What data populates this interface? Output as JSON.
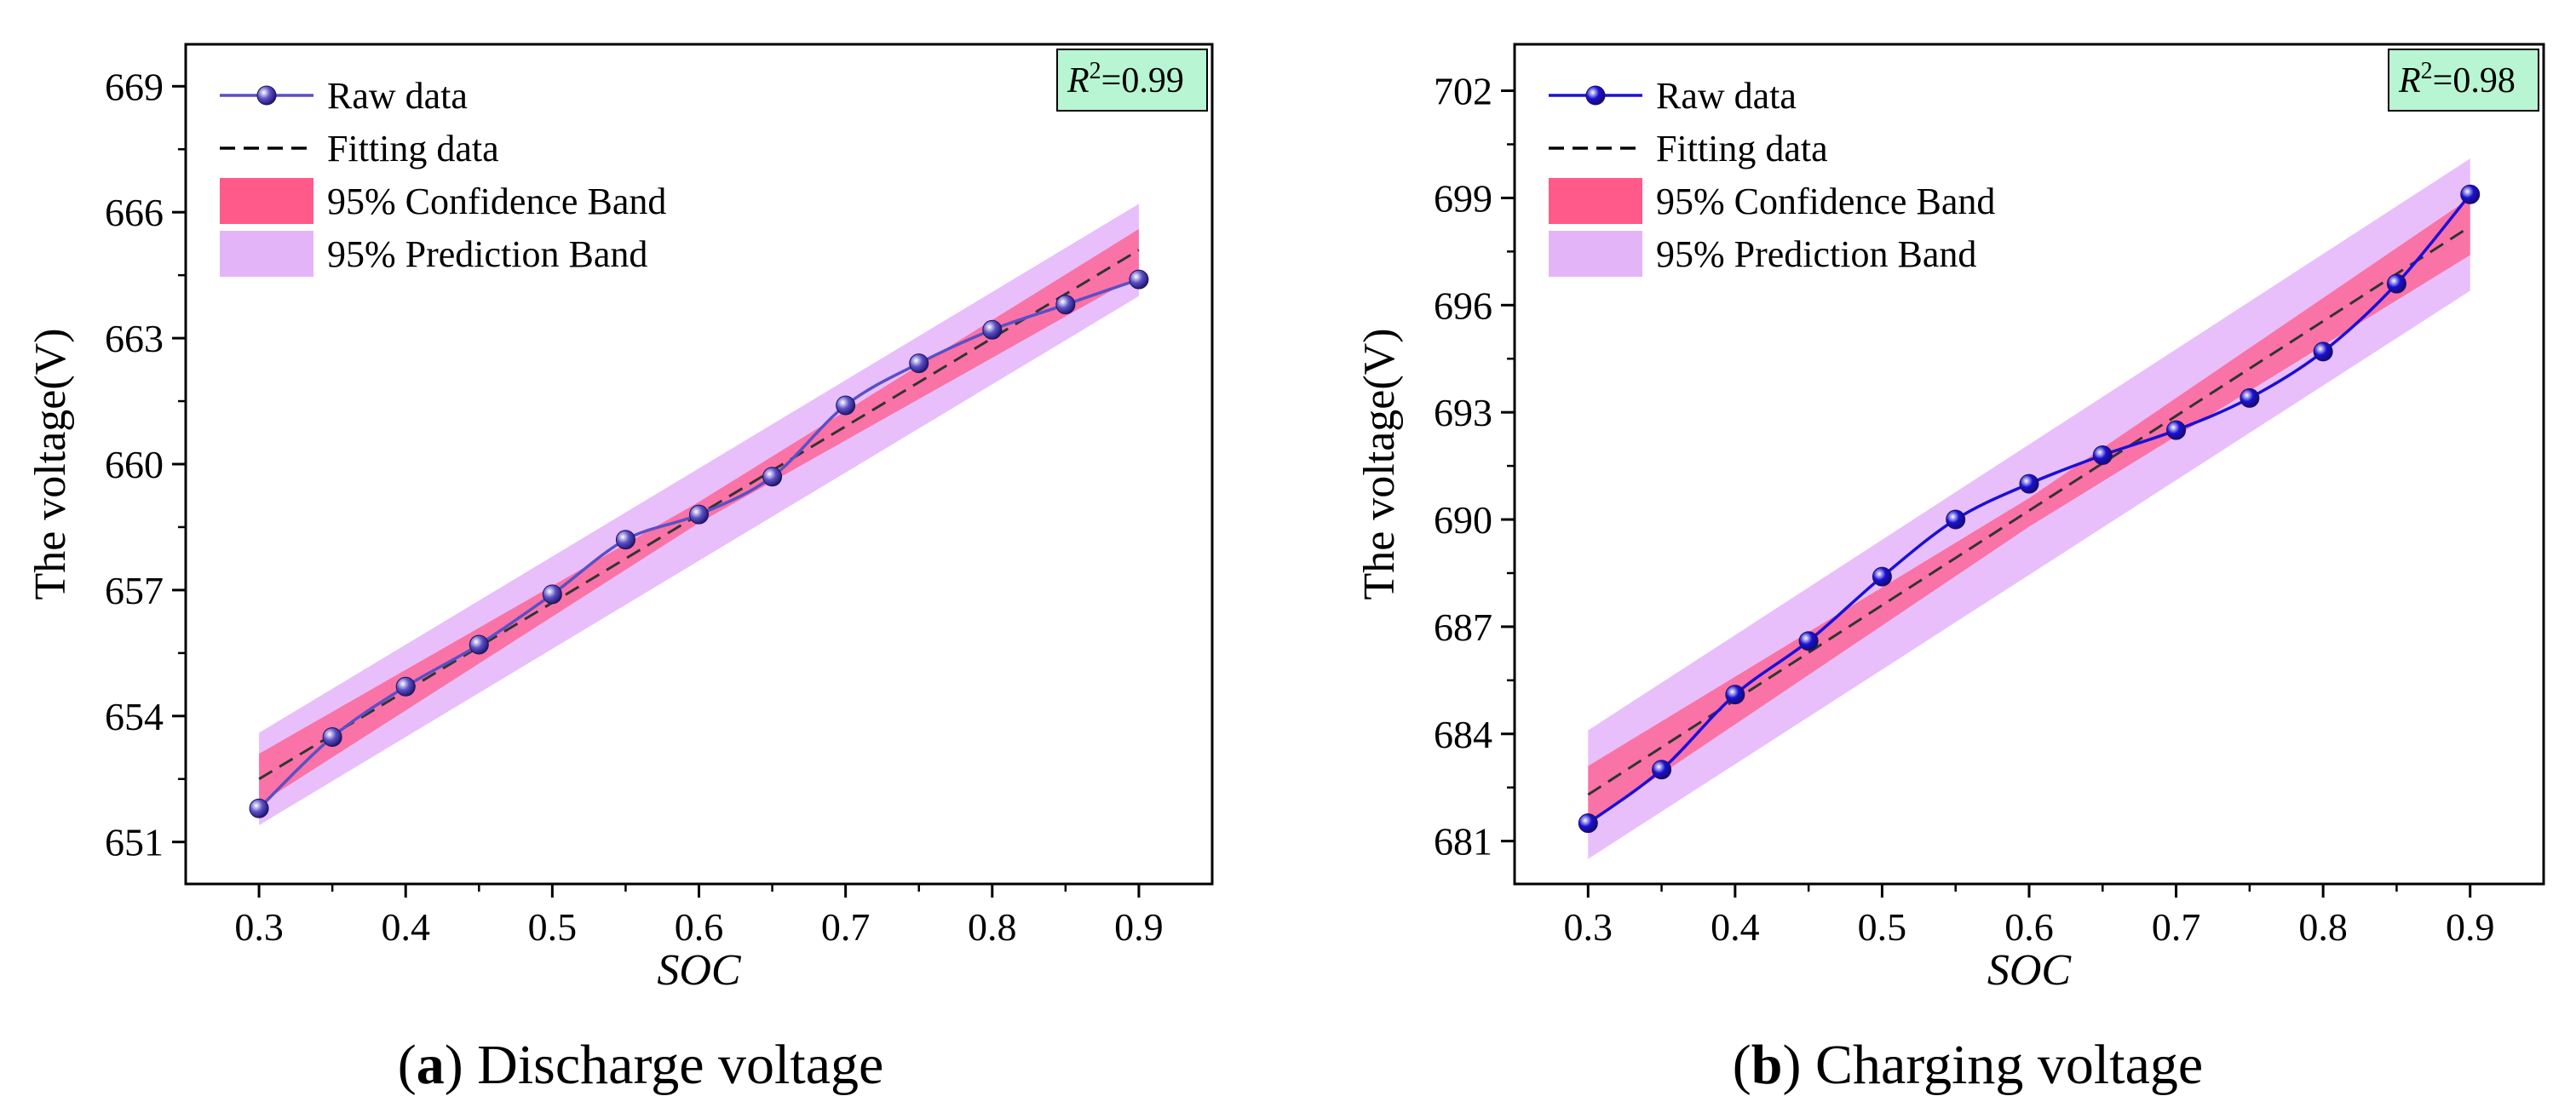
{
  "chart_data": [
    {
      "type": "line",
      "caption": {
        "label": "a",
        "text": "Discharge voltage"
      },
      "xlabel": "SOC",
      "ylabel": "The voltage(V)",
      "xlim": [
        0.25,
        0.95
      ],
      "ylim": [
        650,
        670
      ],
      "x_ticks": [
        "0.3",
        "0.4",
        "0.5",
        "0.6",
        "0.7",
        "0.8",
        "0.9"
      ],
      "y_ticks": [
        "651",
        "654",
        "657",
        "660",
        "663",
        "666",
        "669"
      ],
      "r2": {
        "symbol": "R",
        "sup": "2",
        "value": "=0.99"
      },
      "legend": [
        {
          "key": "raw",
          "label": "Raw data"
        },
        {
          "key": "fit",
          "label": "Fitting data"
        },
        {
          "key": "conf",
          "label": "95% Confidence Band"
        },
        {
          "key": "pred",
          "label": "95% Prediction Band"
        }
      ],
      "colors": {
        "raw": "#5b4fc6",
        "fit": "#333333",
        "conf": "#ff5a8a",
        "pred": "#e4b4f9",
        "r2_box": "#b8f5d2"
      },
      "raw_data": {
        "x": [
          0.3,
          0.35,
          0.4,
          0.45,
          0.5,
          0.55,
          0.6,
          0.65,
          0.7,
          0.75,
          0.8,
          0.85,
          0.9
        ],
        "y": [
          651.8,
          653.5,
          654.7,
          655.7,
          656.9,
          658.2,
          658.8,
          659.7,
          661.4,
          662.4,
          663.2,
          663.8,
          664.4
        ]
      },
      "fit": {
        "x": [
          0.3,
          0.9
        ],
        "y": [
          652.5,
          665.1
        ]
      },
      "confidence_band": {
        "x": [
          0.3,
          0.6,
          0.9
        ],
        "lower": [
          651.9,
          658.6,
          664.5
        ],
        "upper": [
          653.1,
          659.1,
          665.6
        ]
      },
      "prediction_band": {
        "x": [
          0.3,
          0.9
        ],
        "lower": [
          651.4,
          664.0
        ],
        "upper": [
          653.6,
          666.2
        ]
      }
    },
    {
      "type": "line",
      "caption": {
        "label": "b",
        "text": "Charging voltage"
      },
      "xlabel": "SOC",
      "ylabel": "The voltage(V)",
      "xlim": [
        0.25,
        0.95
      ],
      "ylim": [
        679.8,
        703.3
      ],
      "x_ticks": [
        "0.3",
        "0.4",
        "0.5",
        "0.6",
        "0.7",
        "0.8",
        "0.9"
      ],
      "y_ticks": [
        "681",
        "684",
        "687",
        "690",
        "693",
        "696",
        "699",
        "702"
      ],
      "r2": {
        "symbol": "R",
        "sup": "2",
        "value": "=0.98"
      },
      "legend": [
        {
          "key": "raw",
          "label": "Raw data"
        },
        {
          "key": "fit",
          "label": "Fitting data"
        },
        {
          "key": "conf",
          "label": "95% Confidence Band"
        },
        {
          "key": "pred",
          "label": "95% Prediction Band"
        }
      ],
      "colors": {
        "raw": "#1a10d6",
        "fit": "#333333",
        "conf": "#ff5a8a",
        "pred": "#e4b4f9",
        "r2_box": "#b8f5d2"
      },
      "raw_data": {
        "x": [
          0.3,
          0.35,
          0.4,
          0.45,
          0.5,
          0.55,
          0.6,
          0.65,
          0.7,
          0.75,
          0.8,
          0.85,
          0.9
        ],
        "y": [
          681.5,
          683.0,
          685.1,
          686.6,
          688.4,
          690.0,
          691.0,
          691.8,
          692.5,
          693.4,
          694.7,
          696.6,
          699.1
        ]
      },
      "fit": {
        "x": [
          0.3,
          0.9
        ],
        "y": [
          682.3,
          698.2
        ]
      },
      "confidence_band": {
        "x": [
          0.3,
          0.6,
          0.9
        ],
        "lower": [
          681.5,
          689.8,
          697.4
        ],
        "upper": [
          683.1,
          690.6,
          699.0
        ]
      },
      "prediction_band": {
        "x": [
          0.3,
          0.9
        ],
        "lower": [
          680.5,
          696.4
        ],
        "upper": [
          684.1,
          700.1
        ]
      }
    }
  ]
}
